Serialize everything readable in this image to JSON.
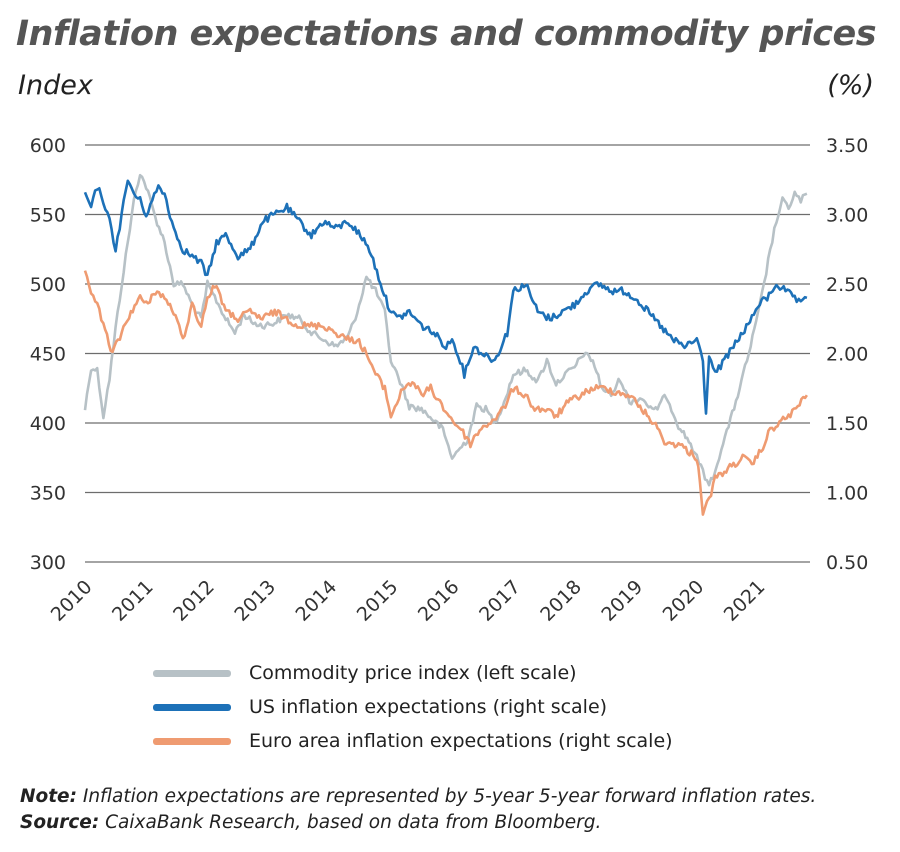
{
  "title": "Inflation expectations and commodity prices",
  "left_unit": "Index",
  "right_unit": "(%)",
  "legend": [
    {
      "label": "Commodity price index (left scale)",
      "color": "#b7c1c6"
    },
    {
      "label": "US inflation expectations (right scale)",
      "color": "#1d71b8"
    },
    {
      "label": "Euro area inflation expectations (right scale)",
      "color": "#ef9b71"
    }
  ],
  "note_label": "Note:",
  "note_text": "Inflation expectations are represented by 5-year 5-year forward inflation rates.",
  "source_label": "Source:",
  "source_text": "CaixaBank Research, based on data from Bloomberg.",
  "chart_data": {
    "type": "line",
    "title": "Inflation expectations and commodity prices",
    "xlabel": "",
    "ylabel": "Index",
    "ylabel_right": "(%)",
    "x_ticks": [
      "2010",
      "2011",
      "2012",
      "2013",
      "2014",
      "2015",
      "2016",
      "2017",
      "2018",
      "2019",
      "2020",
      "2021"
    ],
    "y_left_ticks": [
      "300",
      "350",
      "400",
      "450",
      "500",
      "550",
      "600"
    ],
    "y_right_ticks": [
      "0.50",
      "1.00",
      "1.50",
      "2.00",
      "2.50",
      "3.00",
      "3.50"
    ],
    "ylim_left": [
      300,
      600
    ],
    "ylim_right": [
      0.5,
      3.5
    ],
    "xlim": [
      2010.0,
      2021.85
    ],
    "grid": true,
    "series": [
      {
        "name": "Commodity price index (left scale)",
        "axis": "left",
        "color": "#b7c1c6",
        "x": [
          2010.0,
          2010.1,
          2010.2,
          2010.3,
          2010.4,
          2010.5,
          2010.6,
          2010.7,
          2010.8,
          2010.9,
          2011.0,
          2011.15,
          2011.3,
          2011.45,
          2011.6,
          2011.75,
          2011.9,
          2012.0,
          2012.15,
          2012.3,
          2012.45,
          2012.6,
          2012.75,
          2012.9,
          2013.1,
          2013.3,
          2013.5,
          2013.7,
          2013.9,
          2014.1,
          2014.3,
          2014.45,
          2014.6,
          2014.75,
          2014.9,
          2015.0,
          2015.15,
          2015.3,
          2015.5,
          2015.7,
          2015.85,
          2016.0,
          2016.1,
          2016.25,
          2016.4,
          2016.55,
          2016.7,
          2016.85,
          2017.0,
          2017.2,
          2017.4,
          2017.55,
          2017.7,
          2017.85,
          2018.0,
          2018.15,
          2018.3,
          2018.45,
          2018.6,
          2018.75,
          2018.9,
          2019.1,
          2019.3,
          2019.5,
          2019.7,
          2019.9,
          2020.0,
          2020.1,
          2020.2,
          2020.3,
          2020.4,
          2020.55,
          2020.7,
          2020.85,
          2021.0,
          2021.1,
          2021.2,
          2021.3,
          2021.4,
          2021.5,
          2021.6,
          2021.7,
          2021.8
        ],
        "values": [
          410,
          440,
          438,
          405,
          432,
          468,
          500,
          530,
          560,
          580,
          570,
          548,
          530,
          500,
          500,
          485,
          475,
          500,
          488,
          475,
          465,
          478,
          472,
          470,
          472,
          478,
          475,
          465,
          460,
          455,
          462,
          480,
          505,
          495,
          480,
          445,
          430,
          412,
          410,
          402,
          395,
          375,
          380,
          388,
          412,
          410,
          400,
          415,
          435,
          438,
          430,
          445,
          428,
          435,
          440,
          450,
          445,
          425,
          420,
          432,
          415,
          418,
          408,
          420,
          398,
          385,
          375,
          365,
          355,
          365,
          382,
          402,
          425,
          450,
          478,
          500,
          525,
          545,
          560,
          555,
          565,
          560,
          565
        ]
      },
      {
        "name": "US inflation expectations (right scale)",
        "axis": "right",
        "color": "#1d71b8",
        "x": [
          2010.0,
          2010.1,
          2010.2,
          2010.3,
          2010.4,
          2010.5,
          2010.6,
          2010.7,
          2010.8,
          2010.9,
          2011.0,
          2011.1,
          2011.2,
          2011.3,
          2011.45,
          2011.6,
          2011.75,
          2011.9,
          2012.0,
          2012.15,
          2012.3,
          2012.5,
          2012.7,
          2012.9,
          2013.1,
          2013.3,
          2013.5,
          2013.7,
          2013.9,
          2014.1,
          2014.3,
          2014.5,
          2014.65,
          2014.8,
          2014.95,
          2015.1,
          2015.3,
          2015.5,
          2015.7,
          2015.9,
          2016.0,
          2016.1,
          2016.2,
          2016.35,
          2016.5,
          2016.7,
          2016.9,
          2017.0,
          2017.2,
          2017.4,
          2017.6,
          2017.8,
          2018.0,
          2018.2,
          2018.4,
          2018.6,
          2018.8,
          2019.0,
          2019.2,
          2019.4,
          2019.6,
          2019.8,
          2020.0,
          2020.1,
          2020.15,
          2020.2,
          2020.3,
          2020.45,
          2020.6,
          2020.75,
          2020.9,
          2021.0,
          2021.15,
          2021.3,
          2021.45,
          2021.6,
          2021.7,
          2021.8
        ],
        "values": [
          3.15,
          3.05,
          3.2,
          3.1,
          2.95,
          2.75,
          3.0,
          3.25,
          3.15,
          3.1,
          3.0,
          3.1,
          3.2,
          3.15,
          2.9,
          2.75,
          2.7,
          2.65,
          2.55,
          2.8,
          2.85,
          2.7,
          2.75,
          2.95,
          3.0,
          3.05,
          2.95,
          2.85,
          2.95,
          2.9,
          2.95,
          2.85,
          2.75,
          2.55,
          2.35,
          2.25,
          2.3,
          2.2,
          2.15,
          2.05,
          2.1,
          2.0,
          1.85,
          2.05,
          2.0,
          1.95,
          2.15,
          2.45,
          2.5,
          2.3,
          2.25,
          2.3,
          2.35,
          2.45,
          2.5,
          2.45,
          2.45,
          2.4,
          2.3,
          2.2,
          2.1,
          2.05,
          2.1,
          1.95,
          1.55,
          2.0,
          1.85,
          1.95,
          2.05,
          2.15,
          2.25,
          2.35,
          2.4,
          2.5,
          2.45,
          2.4,
          2.35,
          2.4
        ]
      },
      {
        "name": "Euro area inflation expectations (right scale)",
        "axis": "right",
        "color": "#ef9b71",
        "x": [
          2010.0,
          2010.1,
          2010.2,
          2010.3,
          2010.45,
          2010.6,
          2010.75,
          2010.9,
          2011.0,
          2011.15,
          2011.3,
          2011.45,
          2011.6,
          2011.75,
          2011.9,
          2012.0,
          2012.15,
          2012.3,
          2012.5,
          2012.7,
          2012.9,
          2013.1,
          2013.3,
          2013.5,
          2013.7,
          2013.9,
          2014.1,
          2014.3,
          2014.45,
          2014.6,
          2014.75,
          2014.9,
          2015.0,
          2015.1,
          2015.2,
          2015.35,
          2015.5,
          2015.65,
          2015.8,
          2015.95,
          2016.05,
          2016.15,
          2016.3,
          2016.45,
          2016.6,
          2016.75,
          2016.9,
          2017.0,
          2017.2,
          2017.35,
          2017.5,
          2017.7,
          2017.9,
          2018.1,
          2018.3,
          2018.5,
          2018.7,
          2018.9,
          2019.1,
          2019.3,
          2019.5,
          2019.7,
          2019.85,
          2020.0,
          2020.05,
          2020.1,
          2020.2,
          2020.3,
          2020.45,
          2020.6,
          2020.75,
          2020.9,
          2021.05,
          2021.2,
          2021.35,
          2021.5,
          2021.65,
          2021.8
        ],
        "values": [
          2.6,
          2.45,
          2.35,
          2.2,
          2.0,
          2.15,
          2.3,
          2.4,
          2.35,
          2.45,
          2.4,
          2.3,
          2.1,
          2.35,
          2.2,
          2.4,
          2.5,
          2.3,
          2.25,
          2.3,
          2.25,
          2.3,
          2.25,
          2.2,
          2.2,
          2.2,
          2.15,
          2.1,
          2.1,
          2.0,
          1.85,
          1.75,
          1.55,
          1.65,
          1.75,
          1.8,
          1.7,
          1.75,
          1.65,
          1.55,
          1.5,
          1.45,
          1.35,
          1.45,
          1.5,
          1.55,
          1.65,
          1.75,
          1.7,
          1.6,
          1.6,
          1.55,
          1.65,
          1.7,
          1.75,
          1.75,
          1.72,
          1.7,
          1.6,
          1.5,
          1.35,
          1.35,
          1.3,
          1.25,
          1.1,
          0.85,
          0.95,
          1.1,
          1.15,
          1.2,
          1.25,
          1.2,
          1.3,
          1.45,
          1.5,
          1.55,
          1.62,
          1.7
        ]
      }
    ]
  }
}
